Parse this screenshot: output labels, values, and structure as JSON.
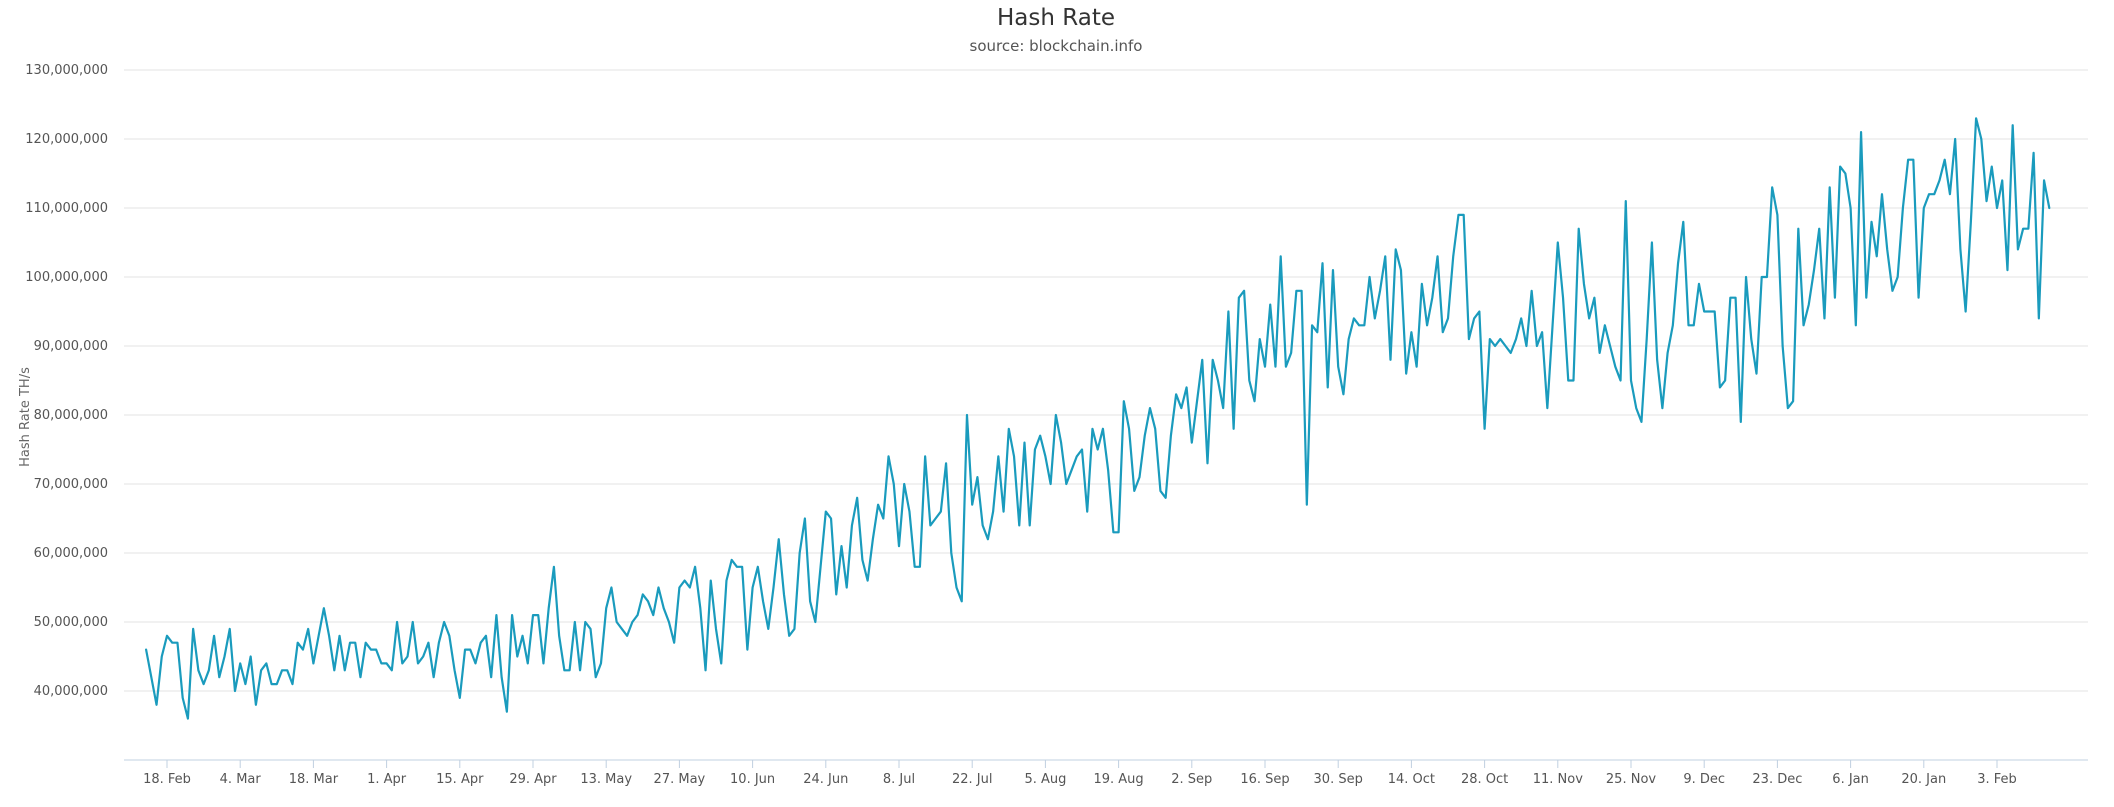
{
  "chart_data": {
    "type": "line",
    "title": "Hash Rate",
    "subtitle": "source: blockchain.info",
    "xlabel": "",
    "ylabel": "Hash Rate TH/s",
    "ylim": [
      30000000,
      130000000
    ],
    "yticks": [
      {
        "value": 40000000,
        "label": "40,000,000"
      },
      {
        "value": 50000000,
        "label": "50,000,000"
      },
      {
        "value": 60000000,
        "label": "60,000,000"
      },
      {
        "value": 70000000,
        "label": "70,000,000"
      },
      {
        "value": 80000000,
        "label": "80,000,000"
      },
      {
        "value": 90000000,
        "label": "90,000,000"
      },
      {
        "value": 100000000,
        "label": "100,000,000"
      },
      {
        "value": 110000000,
        "label": "110,000,000"
      },
      {
        "value": 120000000,
        "label": "120,000,000"
      },
      {
        "value": 130000000,
        "label": "130,000,000"
      }
    ],
    "xticks": [
      {
        "date": "2018-02-18",
        "label": "18. Feb"
      },
      {
        "date": "2018-03-04",
        "label": "4. Mar"
      },
      {
        "date": "2018-03-18",
        "label": "18. Mar"
      },
      {
        "date": "2018-04-01",
        "label": "1. Apr"
      },
      {
        "date": "2018-04-15",
        "label": "15. Apr"
      },
      {
        "date": "2018-04-29",
        "label": "29. Apr"
      },
      {
        "date": "2018-05-13",
        "label": "13. May"
      },
      {
        "date": "2018-05-27",
        "label": "27. May"
      },
      {
        "date": "2018-06-10",
        "label": "10. Jun"
      },
      {
        "date": "2018-06-24",
        "label": "24. Jun"
      },
      {
        "date": "2018-07-08",
        "label": "8. Jul"
      },
      {
        "date": "2018-07-22",
        "label": "22. Jul"
      },
      {
        "date": "2018-08-05",
        "label": "5. Aug"
      },
      {
        "date": "2018-08-19",
        "label": "19. Aug"
      },
      {
        "date": "2018-09-02",
        "label": "2. Sep"
      },
      {
        "date": "2018-09-16",
        "label": "16. Sep"
      },
      {
        "date": "2018-09-30",
        "label": "30. Sep"
      },
      {
        "date": "2018-10-14",
        "label": "14. Oct"
      },
      {
        "date": "2018-10-28",
        "label": "28. Oct"
      },
      {
        "date": "2018-11-11",
        "label": "11. Nov"
      },
      {
        "date": "2018-11-25",
        "label": "25. Nov"
      },
      {
        "date": "2018-12-09",
        "label": "9. Dec"
      },
      {
        "date": "2018-12-23",
        "label": "23. Dec"
      },
      {
        "date": "2019-01-06",
        "label": "6. Jan"
      },
      {
        "date": "2019-01-20",
        "label": "20. Jan"
      },
      {
        "date": "2019-02-03",
        "label": "3. Feb"
      }
    ],
    "grid": true,
    "legend": "none",
    "series": [
      {
        "color": "#1a9bbd",
        "x_start": "2018-02-14",
        "x_step_days": 1,
        "values": [
          46000000,
          42000000,
          38000000,
          45000000,
          48000000,
          47000000,
          47000000,
          39000000,
          36000000,
          49000000,
          43000000,
          41000000,
          43000000,
          48000000,
          42000000,
          45000000,
          49000000,
          40000000,
          44000000,
          41000000,
          45000000,
          38000000,
          43000000,
          44000000,
          41000000,
          41000000,
          43000000,
          43000000,
          41000000,
          47000000,
          46000000,
          49000000,
          44000000,
          48000000,
          52000000,
          48000000,
          43000000,
          48000000,
          43000000,
          47000000,
          47000000,
          42000000,
          47000000,
          46000000,
          46000000,
          44000000,
          44000000,
          43000000,
          50000000,
          44000000,
          45000000,
          50000000,
          44000000,
          45000000,
          47000000,
          42000000,
          47000000,
          50000000,
          48000000,
          43000000,
          39000000,
          46000000,
          46000000,
          44000000,
          47000000,
          48000000,
          42000000,
          51000000,
          42000000,
          37000000,
          51000000,
          45000000,
          48000000,
          44000000,
          51000000,
          51000000,
          44000000,
          52000000,
          58000000,
          48000000,
          43000000,
          43000000,
          50000000,
          43000000,
          50000000,
          49000000,
          42000000,
          44000000,
          52000000,
          55000000,
          50000000,
          49000000,
          48000000,
          50000000,
          51000000,
          54000000,
          53000000,
          51000000,
          55000000,
          52000000,
          50000000,
          47000000,
          55000000,
          56000000,
          55000000,
          58000000,
          52000000,
          43000000,
          56000000,
          49000000,
          44000000,
          56000000,
          59000000,
          58000000,
          58000000,
          46000000,
          55000000,
          58000000,
          53000000,
          49000000,
          55000000,
          62000000,
          54000000,
          48000000,
          49000000,
          60000000,
          65000000,
          53000000,
          50000000,
          58000000,
          66000000,
          65000000,
          54000000,
          61000000,
          55000000,
          64000000,
          68000000,
          59000000,
          56000000,
          62000000,
          67000000,
          65000000,
          74000000,
          70000000,
          61000000,
          70000000,
          66000000,
          58000000,
          58000000,
          74000000,
          64000000,
          65000000,
          66000000,
          73000000,
          60000000,
          55000000,
          53000000,
          80000000,
          67000000,
          71000000,
          64000000,
          62000000,
          66000000,
          74000000,
          66000000,
          78000000,
          74000000,
          64000000,
          76000000,
          64000000,
          75000000,
          77000000,
          74000000,
          70000000,
          80000000,
          76000000,
          70000000,
          72000000,
          74000000,
          75000000,
          66000000,
          78000000,
          75000000,
          78000000,
          72000000,
          63000000,
          63000000,
          82000000,
          78000000,
          69000000,
          71000000,
          77000000,
          81000000,
          78000000,
          69000000,
          68000000,
          77000000,
          83000000,
          81000000,
          84000000,
          76000000,
          82000000,
          88000000,
          73000000,
          88000000,
          85000000,
          81000000,
          95000000,
          78000000,
          97000000,
          98000000,
          85000000,
          82000000,
          91000000,
          87000000,
          96000000,
          87000000,
          103000000,
          87000000,
          89000000,
          98000000,
          98000000,
          67000000,
          93000000,
          92000000,
          102000000,
          84000000,
          101000000,
          87000000,
          83000000,
          91000000,
          94000000,
          93000000,
          93000000,
          100000000,
          94000000,
          98000000,
          103000000,
          88000000,
          104000000,
          101000000,
          86000000,
          92000000,
          87000000,
          99000000,
          93000000,
          97000000,
          103000000,
          92000000,
          94000000,
          103000000,
          109000000,
          109000000,
          91000000,
          94000000,
          95000000,
          78000000,
          91000000,
          90000000,
          91000000,
          90000000,
          89000000,
          91000000,
          94000000,
          90000000,
          98000000,
          90000000,
          92000000,
          81000000,
          93000000,
          105000000,
          97000000,
          85000000,
          85000000,
          107000000,
          99000000,
          94000000,
          97000000,
          89000000,
          93000000,
          90000000,
          87000000,
          85000000,
          111000000,
          85000000,
          81000000,
          79000000,
          91000000,
          105000000,
          88000000,
          81000000,
          89000000,
          93000000,
          102000000,
          108000000,
          93000000,
          93000000,
          99000000,
          95000000,
          95000000,
          95000000,
          84000000,
          85000000,
          97000000,
          97000000,
          79000000,
          100000000,
          91000000,
          86000000,
          100000000,
          100000000,
          113000000,
          109000000,
          90000000,
          81000000,
          82000000,
          107000000,
          93000000,
          96000000,
          101000000,
          107000000,
          94000000,
          113000000,
          97000000,
          116000000,
          115000000,
          110000000,
          93000000,
          121000000,
          97000000,
          108000000,
          103000000,
          112000000,
          104000000,
          98000000,
          100000000,
          110000000,
          117000000,
          117000000,
          97000000,
          110000000,
          112000000,
          112000000,
          114000000,
          117000000,
          112000000,
          120000000,
          104000000,
          95000000,
          108000000,
          123000000,
          120000000,
          111000000,
          116000000,
          110000000,
          114000000,
          101000000,
          122000000,
          104000000,
          107000000,
          107000000,
          118000000,
          94000000,
          114000000,
          110000000
        ]
      }
    ]
  }
}
